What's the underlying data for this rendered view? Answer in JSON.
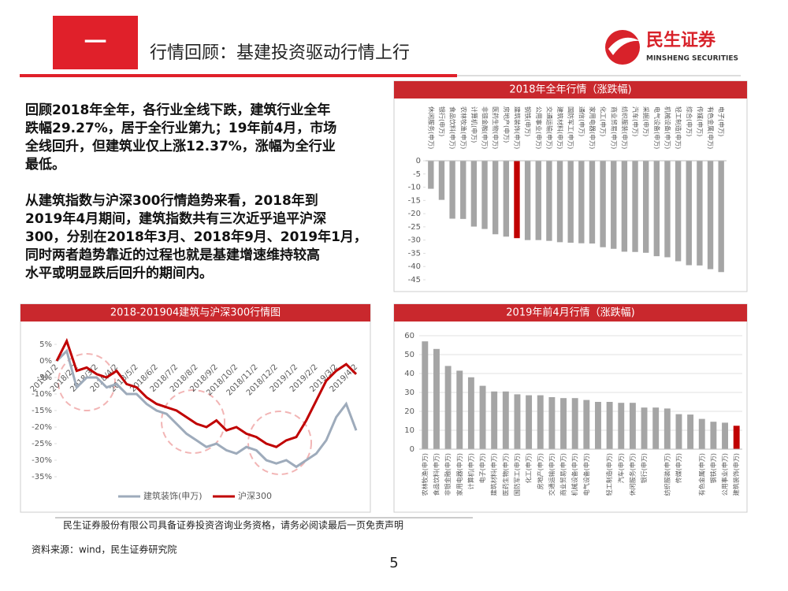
{
  "header": {
    "section": "一",
    "title": "行情回顾：基建投资驱动行情上行",
    "logo": "民生证券",
    "logo_en": "MINSHENG SECURITIES"
  },
  "paragraphs": [
    [
      "回顾2018年全年，各行业全线下跌，建筑行业全年",
      "跌幅29.27%，居于全行业第九；19年前4月，市场",
      "全线回升，但建筑业仅上涨12.37%，涨幅为全行业",
      "最低。"
    ],
    [
      "从建筑指数与沪深300行情趋势来看，2018年到",
      "2019年4月期间，建筑指数共有三次近乎追平沪深",
      "300，分别在2018年3月、2018年9月、2019年1月，",
      "同时两者趋势靠近的过程也就是基建增速维持较高",
      "水平或明显跌后回升的期间内。"
    ]
  ],
  "chart_data": [
    {
      "type": "bar",
      "title": "2018年全年行情（涨跌幅)",
      "categories": [
        "休闲服务(申万)",
        "银行(申万)",
        "食品饮料(申万)",
        "农林牧渔(申万)",
        "计算机(申万)",
        "非银金融(申万)",
        "医药生物(申万)",
        "房地产(申万)",
        "建筑装饰(申万)",
        "钢铁(申万)",
        "公用事业(申万)",
        "交通运输(申万)",
        "建筑材料(申万)",
        "国防军工(申万)",
        "通信(申万)",
        "家用电器(申万)",
        "化工(申万)",
        "商业贸易(申万)",
        "纺织服装(申万)",
        "汽车(申万)",
        "采掘(申万)",
        "电气设备(申万)",
        "机械设备(申万)",
        "轻工制造(申万)",
        "综合(申万)",
        "传媒(申万)",
        "有色金属(申万)",
        "电子(申万)"
      ],
      "values": [
        -10.6,
        -14.8,
        -21.9,
        -22.0,
        -24.9,
        -25.8,
        -27.8,
        -28.7,
        -29.27,
        -30.0,
        -30.0,
        -30.3,
        -30.8,
        -31.0,
        -31.2,
        -31.3,
        -32.7,
        -33.3,
        -34.4,
        -34.5,
        -34.8,
        -36.1,
        -36.5,
        -38.0,
        -39.5,
        -39.6,
        -41.0,
        -42.1
      ],
      "colors": [
        "#a5a5a5",
        "#a5a5a5",
        "#a5a5a5",
        "#a5a5a5",
        "#a5a5a5",
        "#a5a5a5",
        "#a5a5a5",
        "#a5a5a5",
        "#c00000",
        "#a5a5a5",
        "#a5a5a5",
        "#a5a5a5",
        "#a5a5a5",
        "#a5a5a5",
        "#a5a5a5",
        "#a5a5a5",
        "#a5a5a5",
        "#a5a5a5",
        "#a5a5a5",
        "#a5a5a5",
        "#a5a5a5",
        "#a5a5a5",
        "#a5a5a5",
        "#a5a5a5",
        "#a5a5a5",
        "#a5a5a5",
        "#a5a5a5",
        "#a5a5a5"
      ],
      "ylim": [
        -45,
        0
      ],
      "yticks": [
        0,
        -5,
        -10,
        -15,
        -20,
        -25,
        -30,
        -35,
        -40,
        -45
      ],
      "grid": false
    },
    {
      "type": "line",
      "title": "2018-201904建筑与沪深300行情图",
      "x": [
        "2018/1/2",
        null,
        "2018/2/2",
        null,
        "2018/3/2",
        null,
        "2018/4/2",
        null,
        "2018/5/2",
        null,
        "2018/6/2",
        null,
        "2018/7/2",
        null,
        "2018/8/2",
        null,
        "2018/9/2",
        null,
        "2018/10/2",
        null,
        "2018/11/2",
        null,
        "2018/12/2",
        null,
        "2019/1/2",
        null,
        "2019/2/2",
        null,
        "2019/3/2",
        null,
        "2019/4/2"
      ],
      "series": [
        {
          "name": "建筑装饰(申万)",
          "color": "#9eabbb",
          "values": [
            0,
            3,
            -8,
            -5,
            -5,
            -8,
            -7,
            -10,
            -10,
            -13,
            -15,
            -16,
            -19,
            -22,
            -24,
            -26,
            -25,
            -27,
            -28,
            -26,
            -27,
            -30,
            -31,
            -30,
            -32,
            -30,
            -28,
            -24,
            -17,
            -13,
            -21
          ]
        },
        {
          "name": "沪深300",
          "color": "#c00000",
          "values": [
            0,
            6,
            -3,
            -2,
            -4,
            -5,
            -3,
            -7,
            -8,
            -11,
            -13,
            -14,
            -15,
            -17,
            -19,
            -20,
            -18,
            -21,
            -20,
            -22,
            -23,
            -25,
            -26,
            -24,
            -23,
            -18,
            -12,
            -6,
            -3,
            -1,
            -4
          ]
        }
      ],
      "ylim": [
        -35,
        5
      ],
      "yticks": [
        {
          "value": 5,
          "label": "5%"
        },
        {
          "value": 0,
          "label": "0%"
        },
        {
          "value": -5,
          "label": "-5%"
        },
        {
          "value": -10,
          "label": "-10%"
        },
        {
          "value": -15,
          "label": "-15%"
        },
        {
          "value": -20,
          "label": "-20%"
        },
        {
          "value": -25,
          "label": "-25%"
        },
        {
          "value": -30,
          "label": "-30%"
        },
        {
          "value": -35,
          "label": "-35%"
        }
      ],
      "grid": false
    },
    {
      "type": "bar",
      "title": "2019年前4月行情（涨跌幅)",
      "categories": [
        "农林牧渔(申万)",
        "食品饮料(申万)",
        "非银金融(申万)",
        "家用电器(申万)",
        "计算机(申万)",
        "电子(申万)",
        "建筑材料(申万)",
        "医药生物(申万)",
        "国防军工(申万)",
        "化工(申万)",
        "房地产(申万)",
        "交通运输(申万)",
        "商业贸易(申万)",
        "机械设备(申万)",
        "电气设备(申万)",
        null,
        "轻工制造(申万)",
        "汽车(申万)",
        "休闲服务(申万)",
        "银行(申万)",
        null,
        "纺织服装(申万)",
        "传媒(申万)",
        null,
        "有色金属(申万)",
        "钢铁(申万)",
        "公用事业(申万)",
        "建筑装饰(申万)"
      ],
      "values": [
        57,
        53,
        44,
        41.5,
        38,
        33.5,
        30.5,
        30.5,
        29,
        28.5,
        28.5,
        27.5,
        27,
        27,
        26,
        25,
        25,
        24.5,
        24.5,
        22,
        22,
        21.5,
        18.5,
        18.3,
        16,
        14.5,
        14,
        12.37
      ],
      "colors": [
        "#a5a5a5",
        "#a5a5a5",
        "#a5a5a5",
        "#a5a5a5",
        "#a5a5a5",
        "#a5a5a5",
        "#a5a5a5",
        "#a5a5a5",
        "#a5a5a5",
        "#a5a5a5",
        "#a5a5a5",
        "#a5a5a5",
        "#a5a5a5",
        "#a5a5a5",
        "#a5a5a5",
        "#a5a5a5",
        "#a5a5a5",
        "#a5a5a5",
        "#a5a5a5",
        "#a5a5a5",
        "#a5a5a5",
        "#a5a5a5",
        "#a5a5a5",
        "#a5a5a5",
        "#a5a5a5",
        "#a5a5a5",
        "#a5a5a5",
        "#c00000"
      ],
      "ylim": [
        0,
        60
      ],
      "yticks": [
        0,
        10,
        20,
        30,
        40,
        50,
        60
      ],
      "grid": true
    }
  ],
  "footer": {
    "notice": "民生证券股份有限公司具备证券投资咨询业务资格，请务必阅读最后一页免责声明",
    "source": "资料来源：wind，民生证券研究院",
    "page": "5"
  }
}
